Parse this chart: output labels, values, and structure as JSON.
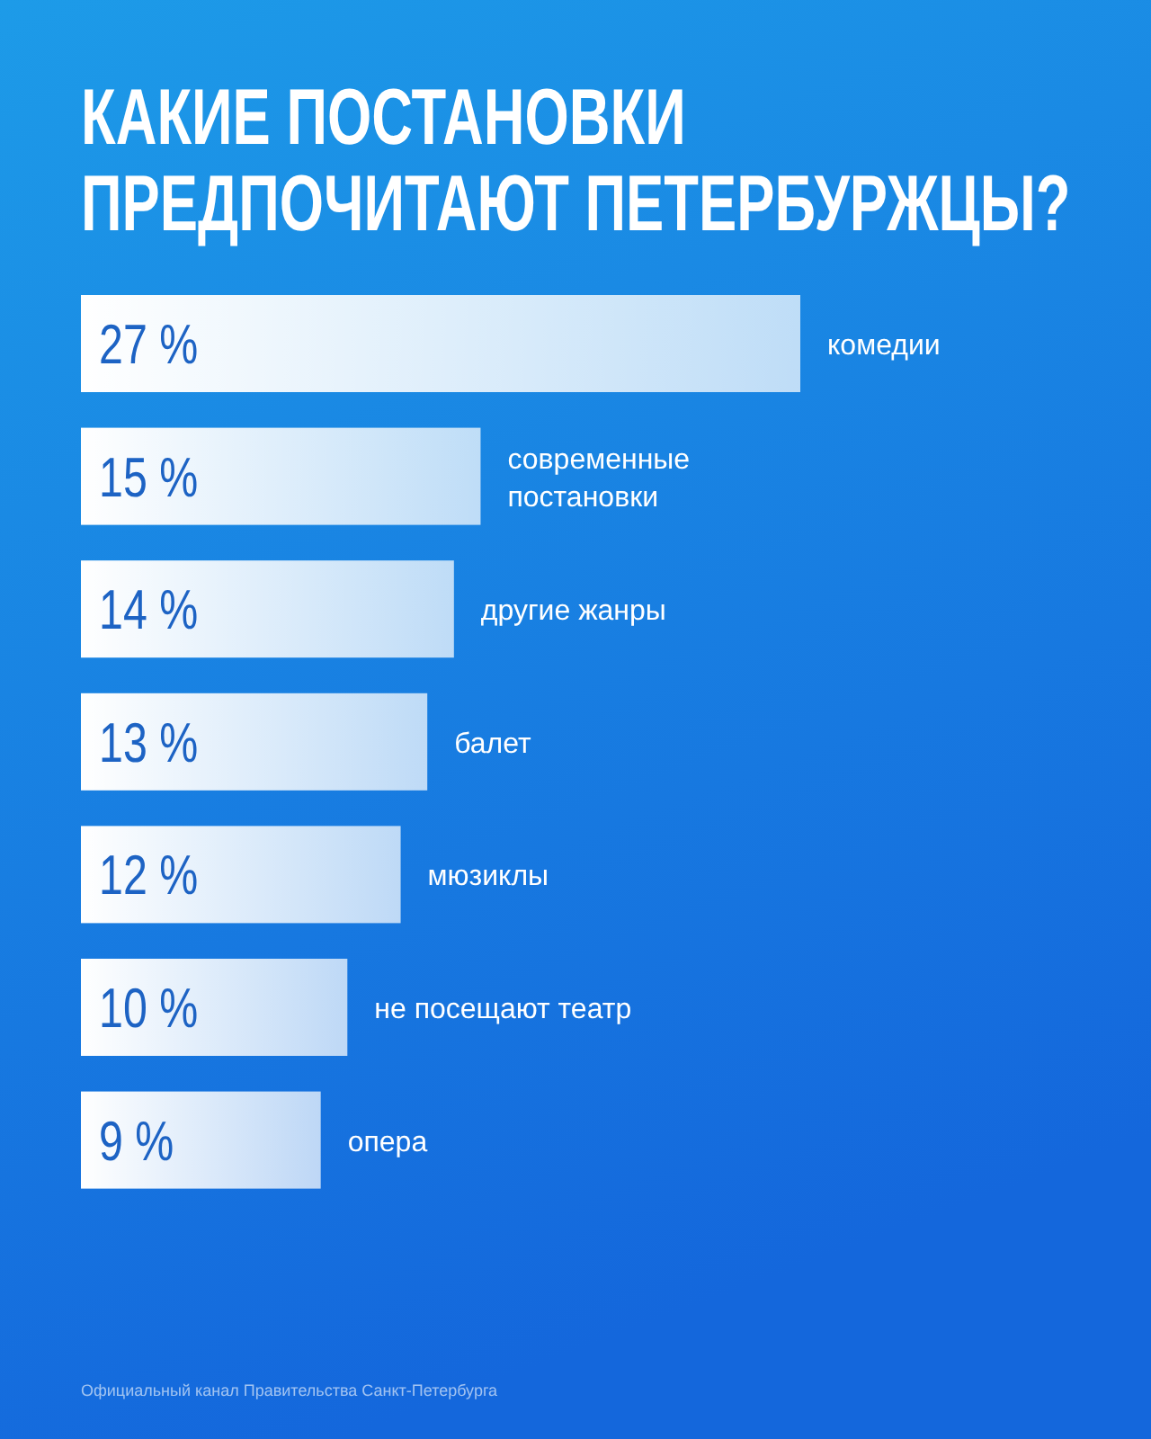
{
  "chart_data": {
    "type": "bar",
    "orientation": "horizontal",
    "title": "КАКИЕ ПОСТАНОВКИ ПРЕДПОЧИТАЮТ ПЕТЕРБУРЖЦЫ?",
    "categories": [
      "комедии",
      "современные постановки",
      "другие жанры",
      "балет",
      "мюзиклы",
      "не посещают театр",
      "опера"
    ],
    "values": [
      27,
      15,
      14,
      13,
      12,
      10,
      9
    ],
    "value_labels": [
      "27 %",
      "15 %",
      "14 %",
      "13 %",
      "12 %",
      "10 %",
      "9 %"
    ],
    "color": "#ffffff",
    "annotations": [
      "Официальный канал Правительства Санкт-Петербурга"
    ]
  }
}
